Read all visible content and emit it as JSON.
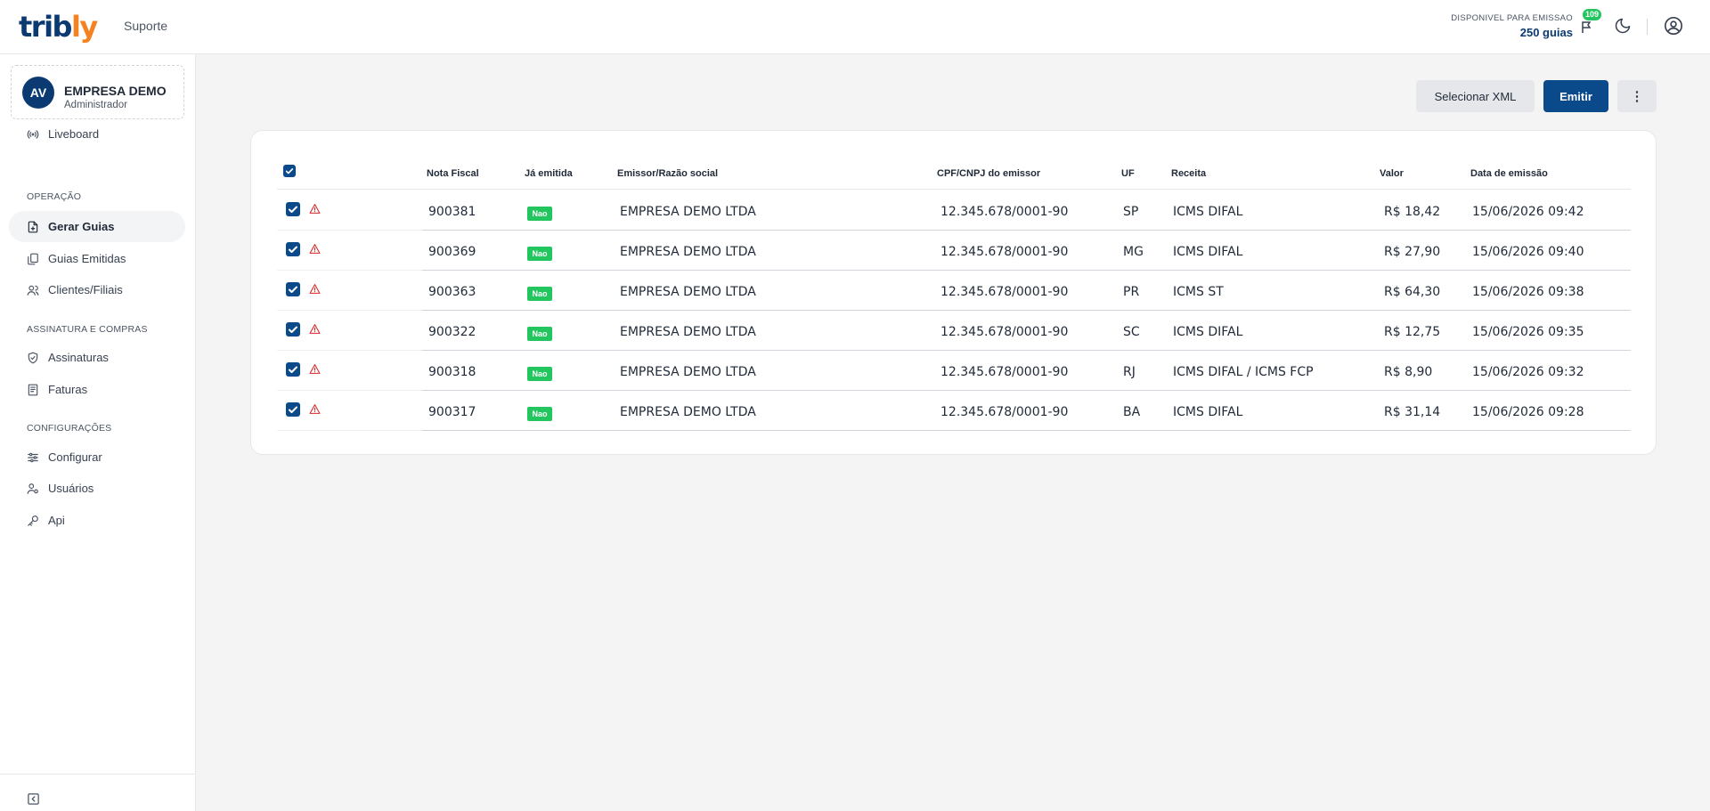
{
  "header": {
    "logo_main": "trib",
    "logo_accent": "ly",
    "support_label": "Suporte",
    "available_label": "DISPONIVEL PARA EMISSAO",
    "available_value": "250 guias",
    "notification_count": "109"
  },
  "sidebar": {
    "company_initials": "AV",
    "company_name": "EMPRESA DEMO",
    "company_role": "Administrador",
    "items": [
      {
        "label": "Liveboard",
        "icon": "signal-icon"
      },
      {
        "label": "Gerar Guias",
        "icon": "file-add-icon",
        "active": true
      },
      {
        "label": "Guias Emitidas",
        "icon": "documents-icon"
      },
      {
        "label": "Clientes/Filiais",
        "icon": "users-icon"
      },
      {
        "label": "Assinaturas",
        "icon": "shield-check-icon"
      },
      {
        "label": "Faturas",
        "icon": "receipt-icon"
      },
      {
        "label": "Configurar",
        "icon": "sliders-icon"
      },
      {
        "label": "Usuários",
        "icon": "user-settings-icon"
      },
      {
        "label": "Api",
        "icon": "key-icon"
      }
    ],
    "sections": [
      "OPERAÇÃO",
      "ASSINATURA E COMPRAS",
      "CONFIGURAÇÕES"
    ]
  },
  "toolbar": {
    "select_xml_label": "Selecionar XML",
    "emit_label": "Emitir",
    "more_label": "⋮"
  },
  "table": {
    "columns": [
      "Nota Fiscal",
      "Já emitida",
      "Emissor/Razão social",
      "CPF/CNPJ do emissor",
      "UF",
      "Receita",
      "Valor",
      "Data de emissão"
    ],
    "rows": [
      {
        "nf": "900381",
        "emitida": "Nao",
        "emissor": "EMPRESA DEMO LTDA",
        "cnpj": "12.345.678/0001-90",
        "uf": "SP",
        "receita": "ICMS DIFAL",
        "valor": "R$ 18,42",
        "data": "15/06/2026 09:42"
      },
      {
        "nf": "900369",
        "emitida": "Nao",
        "emissor": "EMPRESA DEMO LTDA",
        "cnpj": "12.345.678/0001-90",
        "uf": "MG",
        "receita": "ICMS DIFAL",
        "valor": "R$ 27,90",
        "data": "15/06/2026 09:40"
      },
      {
        "nf": "900363",
        "emitida": "Nao",
        "emissor": "EMPRESA DEMO LTDA",
        "cnpj": "12.345.678/0001-90",
        "uf": "PR",
        "receita": "ICMS ST",
        "valor": "R$ 64,30",
        "data": "15/06/2026 09:38"
      },
      {
        "nf": "900322",
        "emitida": "Nao",
        "emissor": "EMPRESA DEMO LTDA",
        "cnpj": "12.345.678/0001-90",
        "uf": "SC",
        "receita": "ICMS DIFAL",
        "valor": "R$ 12,75",
        "data": "15/06/2026 09:35"
      },
      {
        "nf": "900318",
        "emitida": "Nao",
        "emissor": "EMPRESA DEMO LTDA",
        "cnpj": "12.345.678/0001-90",
        "uf": "RJ",
        "receita": "ICMS DIFAL / ICMS FCP",
        "valor": "R$ 8,90",
        "data": "15/06/2026 09:32"
      },
      {
        "nf": "900317",
        "emitida": "Nao",
        "emissor": "EMPRESA DEMO LTDA",
        "cnpj": "12.345.678/0001-90",
        "uf": "BA",
        "receita": "ICMS DIFAL",
        "valor": "R$ 31,14",
        "data": "15/06/2026 09:28"
      }
    ]
  },
  "colors": {
    "brand_blue": "#0b3a73",
    "brand_orange": "#f58220",
    "badge_green": "#22c55e",
    "warning_red": "#dc2626"
  }
}
